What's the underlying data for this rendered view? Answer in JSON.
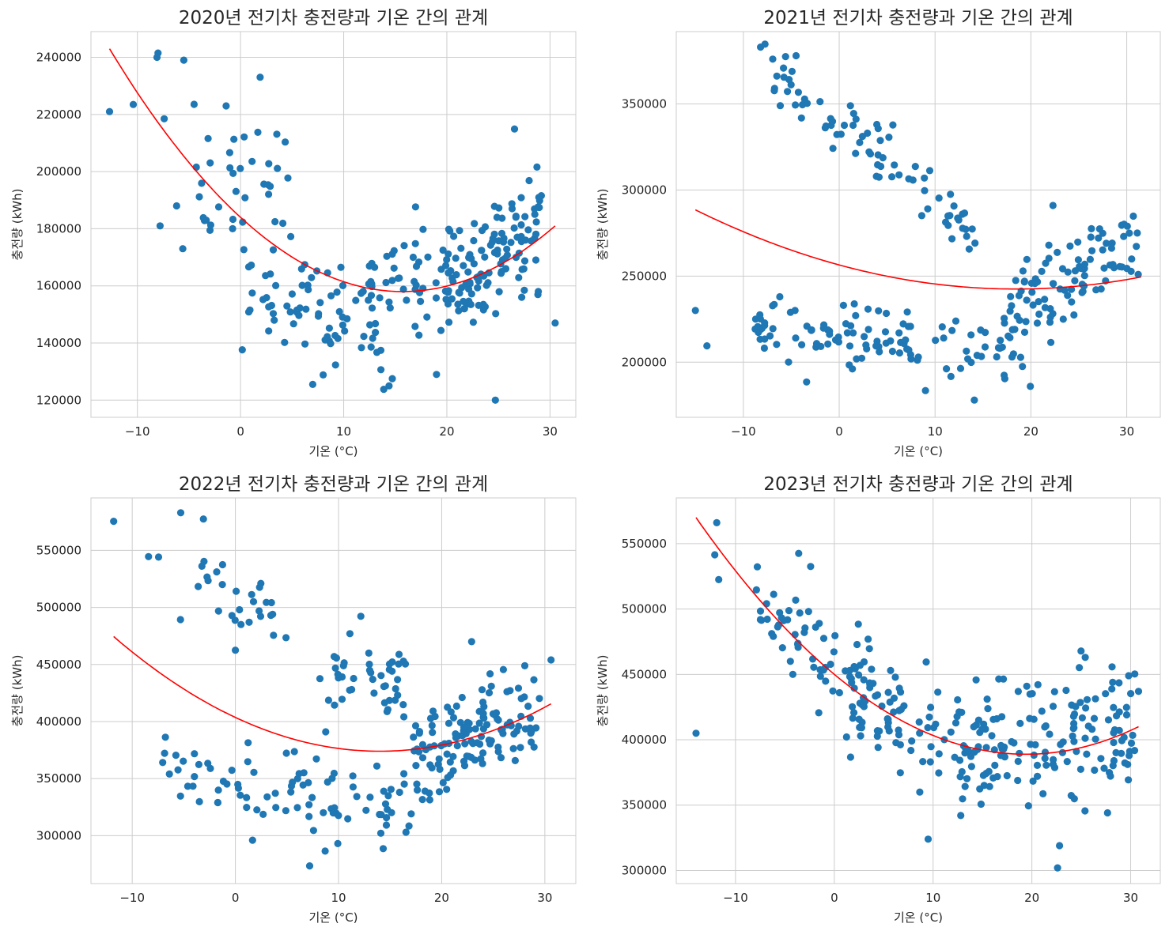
{
  "figure": {
    "background": "#ffffff",
    "point_color": "#1f77b4",
    "fit_color": "#ff0000",
    "grid_color": "#cccccc",
    "grid": true,
    "layout": "2x2"
  },
  "chart_data": [
    {
      "type": "scatter",
      "title": "2020년 전기차 충전량과 기온 간의 관계",
      "xlabel": "기온 (°C)",
      "ylabel": "충전량 (kWh)",
      "xlim": [
        -14.5,
        32.5
      ],
      "ylim": [
        114000,
        249000
      ],
      "xticks": [
        -10,
        0,
        10,
        20,
        30
      ],
      "yticks": [
        120000,
        140000,
        160000,
        180000,
        200000,
        220000,
        240000
      ],
      "fit": {
        "type": "quadratic",
        "x_range": [
          -12.7,
          30.5
        ],
        "points": [
          [
            -12.7,
            243000
          ],
          [
            15.8,
            158000
          ],
          [
            30.5,
            181000
          ]
        ]
      },
      "n_points": 300,
      "seed": 2020,
      "highlight_points": [
        [
          -12.7,
          221000
        ],
        [
          -10.4,
          223500
        ],
        [
          -8.1,
          240000
        ],
        [
          -8.0,
          241500
        ],
        [
          -7.8,
          181000
        ],
        [
          -7.4,
          218500
        ],
        [
          -6.2,
          188000
        ],
        [
          -5.6,
          173000
        ],
        [
          -5.5,
          239000
        ],
        [
          -1.4,
          223000
        ],
        [
          7.0,
          125500
        ],
        [
          14.4,
          125000
        ],
        [
          19.0,
          129000
        ],
        [
          24.7,
          120000
        ],
        [
          30.5,
          147000
        ]
      ],
      "bands": [
        {
          "x": [
            -4.5,
            5.0
          ],
          "center": [
            188000,
            205000
          ],
          "noise": 12000,
          "share": 0.13
        },
        {
          "x": [
            0.0,
            15.0
          ],
          "center": [
            155000,
            150000
          ],
          "noise": 11000,
          "share": 0.28
        },
        {
          "x": [
            12.0,
            24.0
          ],
          "center": [
            163000,
            162000
          ],
          "noise": 9000,
          "share": 0.24
        },
        {
          "x": [
            20.0,
            29.5
          ],
          "center": [
            160000,
            182000
          ],
          "noise": 10000,
          "share": 0.35
        }
      ]
    },
    {
      "type": "scatter",
      "title": "2021년 전기차 충전량과 기온 간의 관계",
      "xlabel": "기온 (°C)",
      "ylabel": "충전량 (kWh)",
      "xlim": [
        -17.0,
        33.5
      ],
      "ylim": [
        168000,
        392000
      ],
      "xticks": [
        -10,
        0,
        10,
        20,
        30
      ],
      "yticks": [
        200000,
        250000,
        300000,
        350000
      ],
      "fit": {
        "type": "quadratic",
        "x_range": [
          -15.0,
          31.5
        ],
        "points": [
          [
            -15.0,
            288500
          ],
          [
            18.0,
            242500
          ],
          [
            31.5,
            249500
          ]
        ]
      },
      "n_points": 300,
      "seed": 2021,
      "highlight_points": [
        [
          -15.0,
          230000
        ],
        [
          -13.8,
          209500
        ],
        [
          -8.2,
          383000
        ],
        [
          -5.6,
          377500
        ],
        [
          -4.5,
          378000
        ],
        [
          -6.2,
          238000
        ],
        [
          -3.4,
          188500
        ],
        [
          14.1,
          178000
        ],
        [
          9.0,
          183500
        ],
        [
          22.3,
          291000
        ],
        [
          31.1,
          275000
        ],
        [
          31.2,
          251000
        ]
      ],
      "bands": [
        {
          "x": [
            -8.0,
            14.5
          ],
          "center": [
            372000,
            278000
          ],
          "noise": 9000,
          "share": 0.27
        },
        {
          "x": [
            -9.0,
            20.0
          ],
          "center": [
            218000,
            205000
          ],
          "noise": 9500,
          "share": 0.4
        },
        {
          "x": [
            17.0,
            31.0
          ],
          "center": [
            230000,
            268000
          ],
          "noise": 11000,
          "share": 0.33
        }
      ]
    },
    {
      "type": "scatter",
      "title": "2022년 전기차 충전량과 기온 간의 관계",
      "xlabel": "기온 (°C)",
      "ylabel": "충전량 (kWh)",
      "xlim": [
        -14.0,
        33.0
      ],
      "ylim": [
        258000,
        596000
      ],
      "xticks": [
        -10,
        0,
        10,
        20,
        30
      ],
      "yticks": [
        300000,
        350000,
        400000,
        450000,
        500000,
        550000
      ],
      "fit": {
        "type": "quadratic",
        "x_range": [
          -11.8,
          30.6
        ],
        "points": [
          [
            -11.8,
            474500
          ],
          [
            14.0,
            374000
          ],
          [
            30.6,
            415500
          ]
        ]
      },
      "n_points": 300,
      "seed": 2022,
      "highlight_points": [
        [
          -11.8,
          575500
        ],
        [
          -5.3,
          583000
        ],
        [
          -3.1,
          577500
        ],
        [
          7.2,
          273500
        ],
        [
          8.7,
          286500
        ],
        [
          30.6,
          454000
        ],
        [
          22.9,
          470000
        ],
        [
          11.1,
          477000
        ],
        [
          0.4,
          498000
        ],
        [
          0.0,
          462500
        ]
      ],
      "bands": [
        {
          "x": [
            -8.5,
            5.5
          ],
          "center": [
            550000,
            488000
          ],
          "noise": 14000,
          "share": 0.1
        },
        {
          "x": [
            -8.0,
            17.0
          ],
          "center": [
            362000,
            322000
          ],
          "noise": 16000,
          "share": 0.3
        },
        {
          "x": [
            8.0,
            16.5
          ],
          "center": [
            445000,
            435000
          ],
          "noise": 15000,
          "share": 0.15
        },
        {
          "x": [
            17.0,
            29.5
          ],
          "center": [
            360000,
            412000
          ],
          "noise": 22000,
          "share": 0.45
        }
      ]
    },
    {
      "type": "scatter",
      "title": "2023년 전기차 충전량과 기온 간의 관계",
      "xlabel": "기온 (°C)",
      "ylabel": "충전량 (kWh)",
      "xlim": [
        -16.0,
        33.0
      ],
      "ylim": [
        290000,
        585000
      ],
      "xticks": [
        -10,
        0,
        10,
        20,
        30
      ],
      "yticks": [
        300000,
        350000,
        400000,
        450000,
        500000,
        550000
      ],
      "fit": {
        "type": "quadratic",
        "x_range": [
          -14.0,
          30.8
        ],
        "points": [
          [
            -14.0,
            570000
          ],
          [
            20.0,
            389000
          ],
          [
            30.8,
            410000
          ]
        ]
      },
      "n_points": 300,
      "seed": 2023,
      "highlight_points": [
        [
          -14.0,
          405000
        ],
        [
          -11.9,
          566000
        ],
        [
          -12.1,
          541500
        ],
        [
          -11.7,
          522500
        ],
        [
          -2.4,
          532500
        ],
        [
          9.3,
          459500
        ],
        [
          9.5,
          324000
        ],
        [
          22.6,
          302000
        ],
        [
          22.8,
          319000
        ],
        [
          25.4,
          463000
        ],
        [
          30.8,
          437000
        ],
        [
          29.8,
          449000
        ]
      ],
      "bands": [
        {
          "x": [
            -8.0,
            5.0
          ],
          "center": [
            500000,
            445000
          ],
          "noise": 22000,
          "share": 0.22
        },
        {
          "x": [
            1.0,
            13.0
          ],
          "center": [
            430000,
            400000
          ],
          "noise": 17000,
          "share": 0.25
        },
        {
          "x": [
            12.0,
            30.5
          ],
          "center": [
            392000,
            405000
          ],
          "noise": 24000,
          "share": 0.53
        }
      ]
    }
  ]
}
